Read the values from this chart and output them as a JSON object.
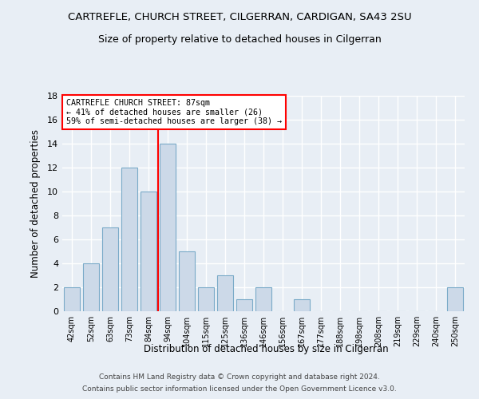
{
  "title_line1": "CARTREFLE, CHURCH STREET, CILGERRAN, CARDIGAN, SA43 2SU",
  "title_line2": "Size of property relative to detached houses in Cilgerran",
  "xlabel": "Distribution of detached houses by size in Cilgerran",
  "ylabel": "Number of detached properties",
  "categories": [
    "42sqm",
    "52sqm",
    "63sqm",
    "73sqm",
    "84sqm",
    "94sqm",
    "104sqm",
    "115sqm",
    "125sqm",
    "136sqm",
    "146sqm",
    "156sqm",
    "167sqm",
    "177sqm",
    "188sqm",
    "198sqm",
    "208sqm",
    "219sqm",
    "229sqm",
    "240sqm",
    "250sqm"
  ],
  "values": [
    2,
    4,
    7,
    12,
    10,
    14,
    5,
    2,
    3,
    1,
    2,
    0,
    1,
    0,
    0,
    0,
    0,
    0,
    0,
    0,
    2
  ],
  "bar_color": "#ccd9e8",
  "bar_edgecolor": "#7aaac8",
  "ylim": [
    0,
    18
  ],
  "yticks": [
    0,
    2,
    4,
    6,
    8,
    10,
    12,
    14,
    16,
    18
  ],
  "property_label": "CARTREFLE CHURCH STREET: 87sqm",
  "annotation_line1": "← 41% of detached houses are smaller (26)",
  "annotation_line2": "59% of semi-detached houses are larger (38) →",
  "vline_position": 4.5,
  "footer_line1": "Contains HM Land Registry data © Crown copyright and database right 2024.",
  "footer_line2": "Contains public sector information licensed under the Open Government Licence v3.0.",
  "background_color": "#e8eef5",
  "grid_color": "#ffffff"
}
